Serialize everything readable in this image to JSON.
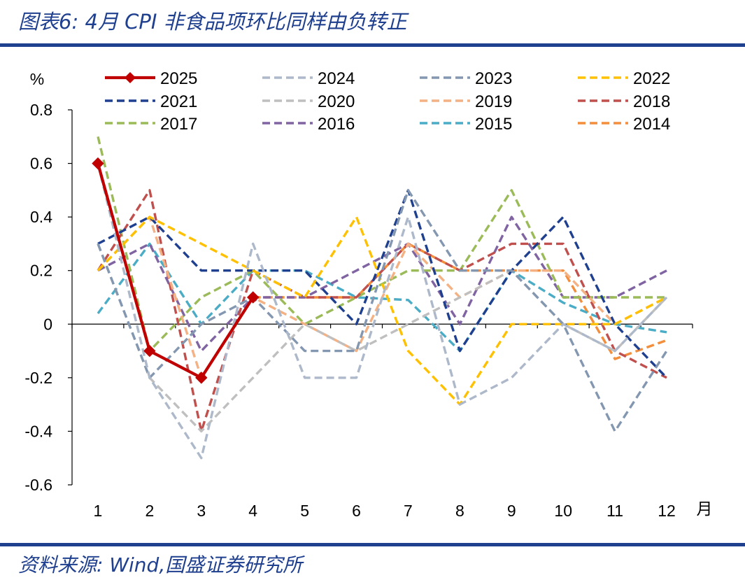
{
  "header": {
    "title": "图表6:  4月 CPI 非食品项环比同样由负转正"
  },
  "footer": {
    "source": "资料来源:  Wind,国盛证券研究所"
  },
  "chart_data": {
    "type": "line",
    "ylabel": "%",
    "xlabel": "月",
    "ylim": [
      -0.6,
      0.8
    ],
    "yticks": [
      "0.8",
      "0.6",
      "0.4",
      "0.2",
      "0",
      "-0.2",
      "-0.4",
      "-0.6"
    ],
    "ytick_values": [
      0.8,
      0.6,
      0.4,
      0.2,
      0,
      -0.2,
      -0.4,
      -0.6
    ],
    "categories": [
      "1",
      "2",
      "3",
      "4",
      "5",
      "6",
      "7",
      "8",
      "9",
      "10",
      "11",
      "12"
    ],
    "legend_position": "top",
    "series": [
      {
        "name": "2014",
        "color": "#f28e3c",
        "dashed": true,
        "values": [
          null,
          null,
          null,
          0.1,
          0.1,
          0.1,
          0.3,
          0.2,
          0.2,
          0.2,
          -0.13,
          -0.06
        ]
      },
      {
        "name": "2015",
        "color": "#4bacc6",
        "dashed": true,
        "values": [
          0.04,
          0.3,
          0.0,
          0.2,
          0.2,
          0.1,
          0.09,
          -0.1,
          0.2,
          0.08,
          0.0,
          -0.03
        ]
      },
      {
        "name": "2016",
        "color": "#8064a2",
        "dashed": true,
        "values": [
          0.2,
          0.3,
          -0.1,
          0.1,
          0.1,
          0.2,
          0.3,
          0.0,
          0.4,
          0.1,
          0.1,
          0.2
        ]
      },
      {
        "name": "2017",
        "color": "#9bbb59",
        "dashed": true,
        "values": [
          0.7,
          -0.1,
          0.1,
          0.2,
          0.0,
          0.1,
          0.2,
          0.2,
          0.5,
          0.1,
          0.1,
          0.1
        ]
      },
      {
        "name": "2018",
        "color": "#c0504d",
        "dashed": true,
        "values": [
          0.2,
          0.5,
          -0.4,
          0.2,
          0.1,
          0.1,
          0.3,
          0.2,
          0.3,
          0.3,
          -0.1,
          -0.2
        ]
      },
      {
        "name": "2019",
        "color": "#f4b183",
        "dashed": true,
        "values": [
          0.2,
          0.4,
          -0.2,
          0.1,
          0.0,
          -0.1,
          0.3,
          0.1,
          0.2,
          0.2,
          0.0,
          0.1
        ]
      },
      {
        "name": "2020",
        "color": "#bfbfbf",
        "dashed": true,
        "values": [
          0.3,
          -0.2,
          -0.4,
          -0.2,
          0.0,
          -0.1,
          0.0,
          0.1,
          0.2,
          0.0,
          -0.1,
          0.1
        ]
      },
      {
        "name": "2021",
        "color": "#1f3f8f",
        "dashed": true,
        "values": [
          0.3,
          0.4,
          0.2,
          0.2,
          0.2,
          0.0,
          0.5,
          -0.1,
          0.2,
          0.4,
          0.0,
          -0.2
        ]
      },
      {
        "name": "2022",
        "color": "#ffc000",
        "dashed": true,
        "values": [
          0.2,
          0.4,
          0.3,
          0.2,
          0.1,
          0.4,
          -0.1,
          -0.3,
          0.0,
          0.0,
          0.0,
          0.1
        ]
      },
      {
        "name": "2023",
        "color": "#8497b0",
        "dashed": true,
        "values": [
          0.3,
          -0.2,
          0.0,
          0.1,
          -0.1,
          -0.1,
          0.5,
          0.2,
          0.2,
          0.0,
          -0.4,
          -0.1
        ]
      },
      {
        "name": "2024",
        "color": "#adb9ca",
        "dashed": true,
        "values": [
          0.6,
          -0.2,
          -0.5,
          0.3,
          -0.2,
          -0.2,
          0.4,
          -0.3,
          -0.2,
          0.0,
          -0.1,
          0.1
        ]
      },
      {
        "name": "2025",
        "color": "#c00000",
        "dashed": false,
        "marker": "diamond",
        "values": [
          0.6,
          -0.1,
          -0.2,
          0.1,
          null,
          null,
          null,
          null,
          null,
          null,
          null,
          null
        ]
      }
    ],
    "legend": [
      "2025",
      "2024",
      "2023",
      "2022",
      "2021",
      "2020",
      "2019",
      "2018",
      "2017",
      "2016",
      "2015",
      "2014"
    ]
  }
}
